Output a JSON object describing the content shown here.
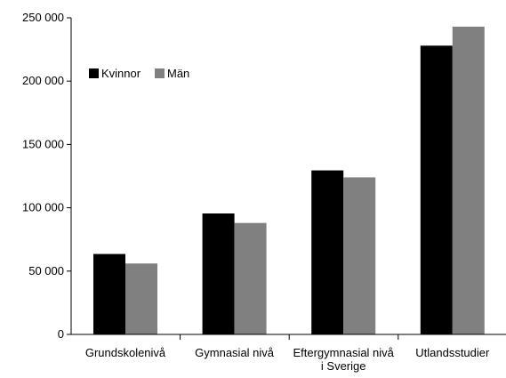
{
  "chart_data": {
    "type": "bar",
    "title": "",
    "xlabel": "",
    "ylabel": "",
    "categories": [
      [
        "Grundskolenivå"
      ],
      [
        "Gymnasial nivå"
      ],
      [
        "Eftergymnasial nivå",
        "i Sverige"
      ],
      [
        "Utlandsstudier"
      ]
    ],
    "series": [
      {
        "name": "Kvinnor",
        "color": "#000000",
        "values": [
          63500,
          95500,
          129500,
          228000
        ]
      },
      {
        "name": "Män",
        "color": "#808080",
        "values": [
          56000,
          88000,
          124000,
          243000
        ]
      }
    ],
    "ylim": [
      0,
      250000
    ],
    "yticks": [
      0,
      50000,
      100000,
      150000,
      200000,
      250000
    ],
    "ytick_labels": [
      "0",
      "50 000",
      "100 000",
      "150 000",
      "200 000",
      "250 000"
    ],
    "grid": false,
    "legend_position": "top-left"
  }
}
